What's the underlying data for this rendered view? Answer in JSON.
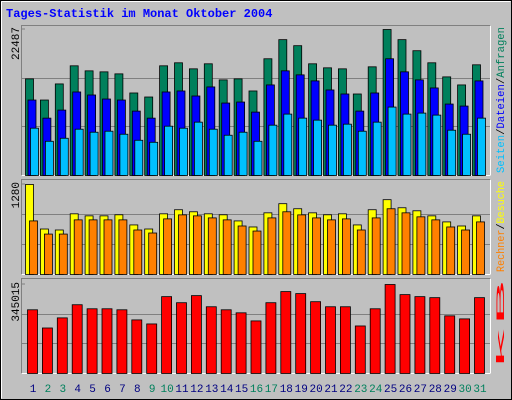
{
  "chart_data": [
    {
      "type": "bar",
      "title": "Tages-Statistik im Monat Oktober 2004",
      "ylim": [
        0,
        22487
      ],
      "yticks": [
        22487
      ],
      "legend_separator": "/",
      "series": [
        {
          "name": "Anfragen",
          "color": "#00805c",
          "values": [
            14880,
            11625,
            14105,
            16895,
            16120,
            15965,
            15655,
            12710,
            12090,
            16895,
            17360,
            16430,
            17205,
            14725,
            14880,
            13020,
            17980,
            20925,
            19995,
            17205,
            16585,
            16430,
            12555,
            16740,
            22487,
            20925,
            19220,
            17360,
            15190,
            13950,
            17050
          ]
        },
        {
          "name": "Dateien",
          "color": "#0000ff",
          "values": [
            11625,
            8835,
            10075,
            12865,
            12400,
            11780,
            11625,
            9920,
            8835,
            12865,
            13020,
            12245,
            13640,
            11160,
            11315,
            9765,
            13950,
            16120,
            15500,
            14570,
            13175,
            12555,
            9920,
            12710,
            17980,
            15965,
            14725,
            13485,
            11005,
            10695,
            14570
          ]
        },
        {
          "name": "Seiten",
          "color": "#00c0ff",
          "values": [
            7285,
            5270,
            5735,
            7130,
            6665,
            6820,
            6355,
            5425,
            5115,
            7595,
            7285,
            8215,
            7130,
            6200,
            6665,
            5270,
            7750,
            9455,
            8835,
            8525,
            7750,
            7905,
            6820,
            8215,
            10540,
            9455,
            9610,
            9300,
            6975,
            6355,
            8835
          ]
        }
      ]
    },
    {
      "type": "bar",
      "ylim": [
        0,
        1280
      ],
      "yticks": [
        1280
      ],
      "legend_separator": "/",
      "series": [
        {
          "name": "Besuche",
          "color": "#ffff00",
          "values": [
            1280,
            647,
            633,
            863,
            834,
            834,
            849,
            705,
            647,
            863,
            921,
            892,
            863,
            849,
            762,
            676,
            877,
            1007,
            935,
            877,
            849,
            863,
            705,
            921,
            1064,
            949,
            906,
            834,
            748,
            690,
            834
          ]
        },
        {
          "name": "Rechner",
          "color": "#ff8000",
          "values": [
            762,
            575,
            575,
            777,
            777,
            777,
            777,
            633,
            590,
            791,
            848,
            834,
            805,
            777,
            690,
            618,
            805,
            892,
            848,
            805,
            777,
            791,
            633,
            805,
            935,
            877,
            820,
            777,
            676,
            633,
            748
          ]
        }
      ]
    },
    {
      "type": "bar",
      "ylim": [
        0,
        345015
      ],
      "yticks": [
        345015
      ],
      "series": [
        {
          "name": "kB",
          "color": "#ff0000",
          "values": [
            247000,
            176430,
            215630,
            266600,
            250920,
            250920,
            247000,
            207790,
            192110,
            297970,
            274440,
            301890,
            258760,
            247000,
            235240,
            203870,
            274440,
            317570,
            309730,
            278360,
            258760,
            258760,
            184270,
            250920,
            345015,
            305810,
            297970,
            294050,
            223480,
            211710,
            294050
          ]
        }
      ],
      "categories": [
        "1",
        "2",
        "3",
        "4",
        "5",
        "6",
        "7",
        "8",
        "9",
        "10",
        "11",
        "12",
        "13",
        "14",
        "15",
        "16",
        "17",
        "18",
        "19",
        "20",
        "21",
        "22",
        "23",
        "24",
        "25",
        "26",
        "27",
        "28",
        "29",
        "30",
        "31"
      ],
      "category_colors": [
        "#000080",
        "#00805c",
        "#00805c",
        "#000080",
        "#000080",
        "#000080",
        "#000080",
        "#000080",
        "#00805c",
        "#00805c",
        "#000080",
        "#000080",
        "#000080",
        "#000080",
        "#000080",
        "#00805c",
        "#00805c",
        "#000080",
        "#000080",
        "#000080",
        "#000080",
        "#000080",
        "#00805c",
        "#00805c",
        "#000080",
        "#000080",
        "#000080",
        "#000080",
        "#000080",
        "#00805c",
        "#00805c"
      ]
    }
  ]
}
